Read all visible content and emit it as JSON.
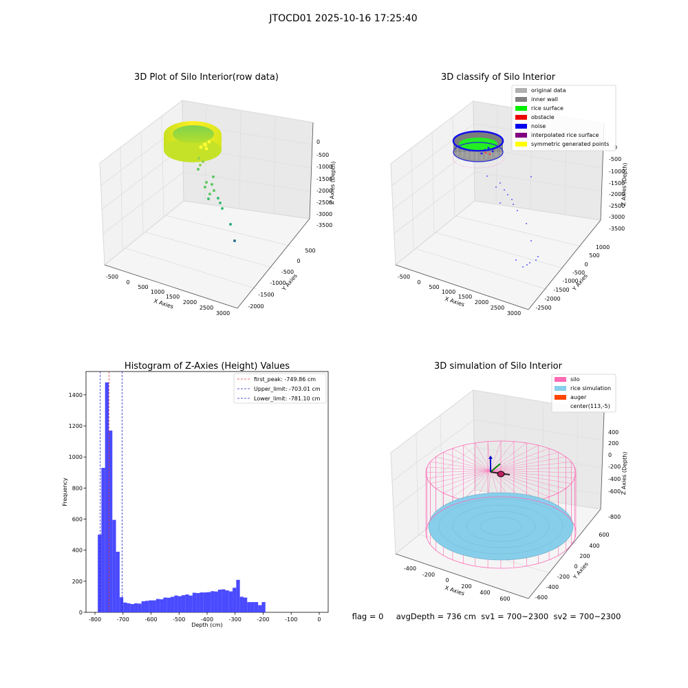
{
  "figure": {
    "suptitle": "JTOCD01 2025-10-16 17:25:40",
    "status_text": "flag = 0     avgDepth = 736 cm  sv1 = 700~2300  sv2 = 700~2300"
  },
  "chart_data": [
    {
      "type": "scatter",
      "title": "3D Plot of Silo Interior(row data)",
      "xlabel": "X Axies",
      "ylabel": "Y Axies",
      "zlabel": "Z Axies (Depth)",
      "x_ticks": [
        "-500",
        "0",
        "500",
        "1000",
        "1500",
        "2000",
        "2500",
        "3000"
      ],
      "y_ticks": [
        "500",
        "0",
        "-500",
        "-1000",
        "-1500",
        "-2000"
      ],
      "z_ticks": [
        "0",
        "-500",
        "-1000",
        "-1500",
        "-2000",
        "-2500",
        "-3000",
        "-3500"
      ],
      "outliers": [
        {
          "x": 2200,
          "y": -300,
          "z": -1700
        },
        {
          "x": 3000,
          "y": -1200,
          "z": -3300
        },
        {
          "x": 800,
          "y": -500,
          "z": -1500
        },
        {
          "x": 1000,
          "y": -600,
          "z": -2200
        },
        {
          "x": 1500,
          "y": -900,
          "z": -2800
        },
        {
          "x": 2000,
          "y": -1300,
          "z": -3300
        },
        {
          "x": 2500,
          "y": -1700,
          "z": -3500
        }
      ]
    },
    {
      "type": "scatter",
      "title": "3D classify of Silo Interior",
      "xlabel": "X Axies",
      "ylabel": "Y Axies",
      "zlabel": "Z Axies (Depth)",
      "x_ticks": [
        "-500",
        "0",
        "500",
        "1000",
        "1500",
        "2000",
        "2500",
        "3000"
      ],
      "y_ticks": [
        "1000",
        "500",
        "0",
        "-500",
        "-1000",
        "-1500",
        "-2000",
        "-2500"
      ],
      "z_ticks": [
        "0",
        "-500",
        "-1000",
        "-1500",
        "-2000",
        "-2500",
        "-3000",
        "-3500"
      ],
      "legend": [
        {
          "label": "original data",
          "color": "#b0b0b0"
        },
        {
          "label": "inner wall",
          "color": "#808080"
        },
        {
          "label": "rice surface",
          "color": "#00ee00"
        },
        {
          "label": "obstacle",
          "color": "#ee0000"
        },
        {
          "label": "noise",
          "color": "#0000ee"
        },
        {
          "label": "interpolated rice surface",
          "color": "#800080"
        },
        {
          "label": "symmetric generated points",
          "color": "#ffff00"
        }
      ],
      "legend_loc": "upper right"
    },
    {
      "type": "bar",
      "title": "Histogram of Z-Axies (Height) Values",
      "xlabel": "Depth (cm)",
      "ylabel": "Frequency",
      "bin_start": -790,
      "bin_width": 13,
      "values": [
        500,
        930,
        1480,
        1170,
        595,
        390,
        97,
        63,
        58,
        53,
        58,
        56,
        71,
        74,
        77,
        77,
        86,
        84,
        95,
        94,
        100,
        108,
        104,
        110,
        115,
        108,
        126,
        124,
        128,
        128,
        130,
        136,
        134,
        146,
        148,
        141,
        135,
        158,
        209,
        100,
        95,
        66,
        66,
        66,
        46,
        66
      ],
      "x_ticks": [
        -800,
        -700,
        -600,
        -500,
        -400,
        -300,
        -200,
        -100,
        0
      ],
      "y_ticks": [
        0,
        200,
        400,
        600,
        800,
        1000,
        1200,
        1400
      ],
      "xlim": [
        -832,
        32
      ],
      "ylim": [
        0,
        1550
      ],
      "bar_color": "#4040ff",
      "vlines": [
        {
          "label": "first_peak: -749.86 cm",
          "x": -749.86,
          "color": "#dd3333"
        },
        {
          "label": "Upper_limit: -703.01 cm",
          "x": -703.01,
          "color": "#2222cc"
        },
        {
          "label": "Lower_limit: -781.10 cm",
          "x": -781.1,
          "color": "#2222cc"
        }
      ],
      "legend_loc": "upper right"
    },
    {
      "type": "surface",
      "title": "3D simulation of Silo Interior",
      "xlabel": "X Axies",
      "ylabel": "Y Axies",
      "zlabel": "Z Axies (Depth)",
      "x_ticks": [
        "-400",
        "-200",
        "0",
        "200",
        "400",
        "600"
      ],
      "y_ticks": [
        "600",
        "400",
        "200",
        "0",
        "-200",
        "-400",
        "-600"
      ],
      "z_ticks": [
        "400",
        "200",
        "0",
        "-200",
        "-400",
        "-600",
        "-800"
      ],
      "legend": [
        {
          "label": "silo",
          "color": "#ff69b4"
        },
        {
          "label": "rice simulation",
          "color": "#87ceeb"
        },
        {
          "label": "auger",
          "color": "#ff4500"
        },
        {
          "label": "center(113,-5)",
          "color": ""
        }
      ],
      "legend_loc": "upper right"
    }
  ]
}
